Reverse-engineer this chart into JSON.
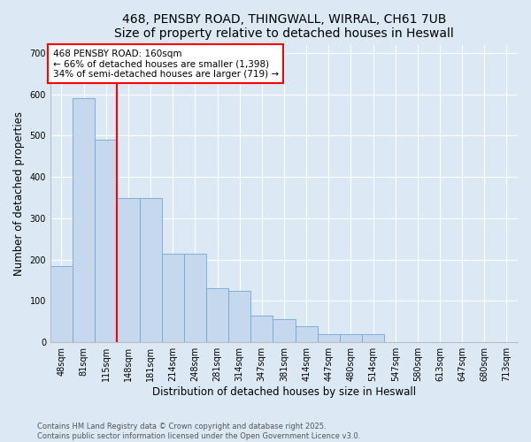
{
  "title1": "468, PENSBY ROAD, THINGWALL, WIRRAL, CH61 7UB",
  "title2": "Size of property relative to detached houses in Heswall",
  "xlabel": "Distribution of detached houses by size in Heswall",
  "ylabel": "Number of detached properties",
  "annotation_title": "468 PENSBY ROAD: 160sqm",
  "annotation_line1": "← 66% of detached houses are smaller (1,398)",
  "annotation_line2": "34% of semi-detached houses are larger (719) →",
  "footer1": "Contains HM Land Registry data © Crown copyright and database right 2025.",
  "footer2": "Contains public sector information licensed under the Open Government Licence v3.0.",
  "categories": [
    "48sqm",
    "81sqm",
    "115sqm",
    "148sqm",
    "181sqm",
    "214sqm",
    "248sqm",
    "281sqm",
    "314sqm",
    "347sqm",
    "381sqm",
    "414sqm",
    "447sqm",
    "480sqm",
    "514sqm",
    "547sqm",
    "580sqm",
    "613sqm",
    "647sqm",
    "680sqm",
    "713sqm"
  ],
  "values": [
    185,
    590,
    490,
    350,
    350,
    215,
    215,
    130,
    125,
    65,
    55,
    40,
    20,
    20,
    20,
    0,
    0,
    0,
    0,
    0,
    0
  ],
  "bar_color": "#c5d8ee",
  "bar_edge_color": "#6fa8d4",
  "red_line_x": 2.5,
  "ylim": [
    0,
    720
  ],
  "yticks": [
    0,
    100,
    200,
    300,
    400,
    500,
    600,
    700
  ],
  "bg_color": "#dce9f5",
  "plot_bg_color": "#dce9f5",
  "annotation_box_color": "white",
  "annotation_box_edge": "red",
  "red_line_color": "red",
  "title_fontsize": 10,
  "axis_label_fontsize": 8.5,
  "tick_fontsize": 7,
  "annotation_fontsize": 7.5,
  "footer_fontsize": 6
}
